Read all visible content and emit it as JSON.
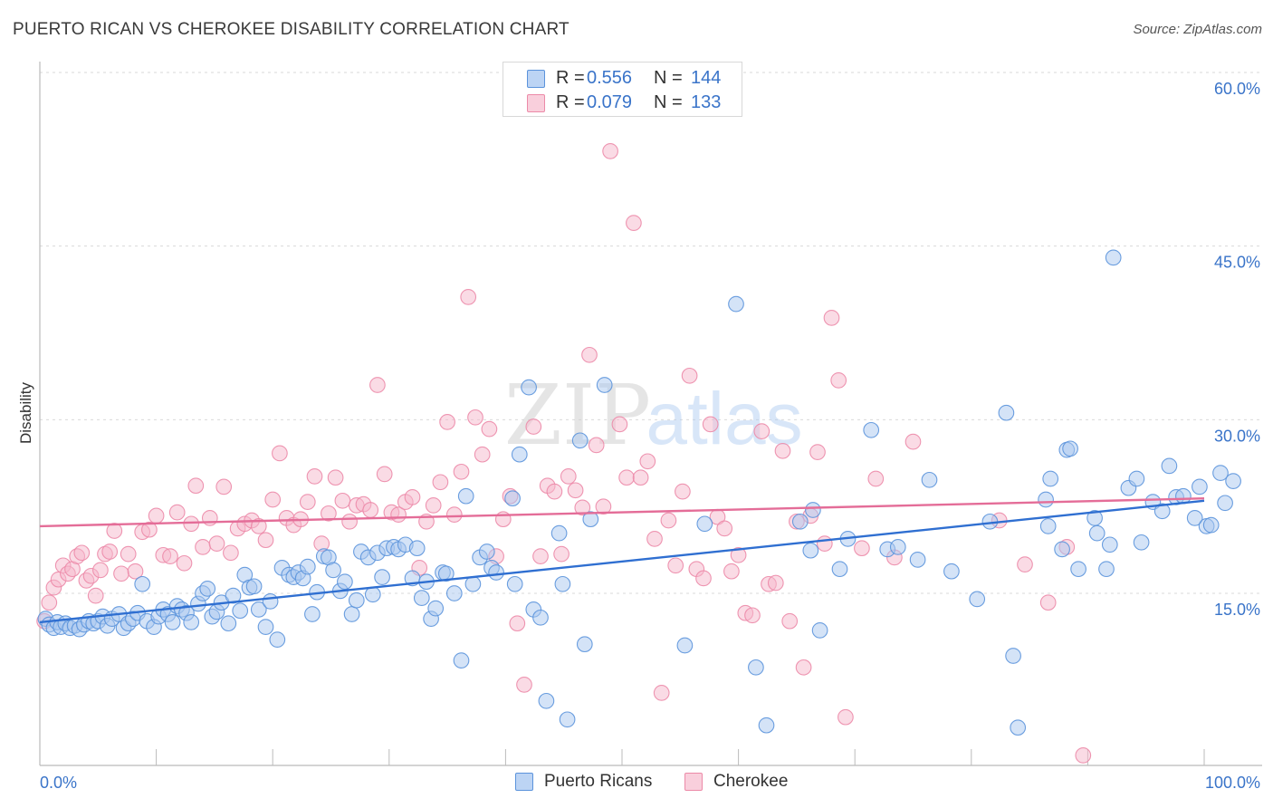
{
  "header": {
    "title": "PUERTO RICAN VS CHEROKEE DISABILITY CORRELATION CHART",
    "source": "Source: ZipAtlas.com"
  },
  "watermark": {
    "left": "ZIP",
    "right": "atlas"
  },
  "legend": {
    "rows": [
      {
        "r_label": "R =",
        "r_value": "0.556",
        "n_label": "N =",
        "n_value": "144"
      },
      {
        "r_label": "R =",
        "r_value": "0.079",
        "n_label": "N =",
        "n_value": "133"
      }
    ]
  },
  "bottom_legend": {
    "series1": "Puerto Ricans",
    "series2": "Cherokee"
  },
  "colors": {
    "blue_fill": "#a9c8f0",
    "blue_stroke": "#5b93db",
    "blue_line": "#2f6fd1",
    "pink_fill": "#f6b8cb",
    "pink_stroke": "#ec8aa8",
    "pink_line": "#e46d98",
    "grid": "#d9d9d9",
    "tick_text": "#3a74c9"
  },
  "chart_data": {
    "type": "scatter",
    "title": "PUERTO RICAN VS CHEROKEE DISABILITY CORRELATION CHART",
    "xlabel": "",
    "ylabel": "Disability",
    "xlim": [
      0,
      100
    ],
    "ylim": [
      0,
      62
    ],
    "y_ticks": [
      15,
      30,
      45,
      60
    ],
    "y_tick_labels": [
      "15.0%",
      "30.0%",
      "45.0%",
      "60.0%"
    ],
    "x_tick_labels": [
      "0.0%",
      "100.0%"
    ],
    "grid": "horizontal dashed",
    "legend_position": "top-center",
    "series": [
      {
        "name": "Puerto Ricans",
        "R": 0.556,
        "N": 144,
        "trend": [
          [
            0,
            12.5
          ],
          [
            100,
            23.0
          ]
        ],
        "points": [
          [
            0.5,
            12.8
          ],
          [
            0.8,
            12.3
          ],
          [
            1.2,
            12.0
          ],
          [
            1.5,
            12.5
          ],
          [
            1.8,
            12.1
          ],
          [
            2.2,
            12.4
          ],
          [
            2.6,
            12.0
          ],
          [
            3.0,
            12.2
          ],
          [
            3.4,
            11.9
          ],
          [
            3.8,
            12.3
          ],
          [
            4.2,
            12.6
          ],
          [
            4.6,
            12.4
          ],
          [
            5.0,
            12.6
          ],
          [
            5.4,
            13.0
          ],
          [
            5.8,
            12.2
          ],
          [
            6.2,
            12.8
          ],
          [
            6.8,
            13.2
          ],
          [
            7.2,
            12.0
          ],
          [
            7.6,
            12.4
          ],
          [
            8.0,
            12.8
          ],
          [
            8.4,
            13.3
          ],
          [
            8.8,
            15.8
          ],
          [
            9.2,
            12.6
          ],
          [
            9.8,
            12.1
          ],
          [
            10.2,
            13.0
          ],
          [
            10.6,
            13.6
          ],
          [
            11.0,
            13.2
          ],
          [
            11.4,
            12.5
          ],
          [
            11.8,
            13.9
          ],
          [
            12.2,
            13.6
          ],
          [
            12.6,
            13.3
          ],
          [
            13.0,
            12.5
          ],
          [
            13.6,
            14.1
          ],
          [
            14.0,
            15.0
          ],
          [
            14.4,
            15.4
          ],
          [
            14.8,
            13.0
          ],
          [
            15.2,
            13.4
          ],
          [
            15.6,
            14.2
          ],
          [
            16.2,
            12.4
          ],
          [
            16.6,
            14.8
          ],
          [
            17.2,
            13.5
          ],
          [
            17.6,
            16.6
          ],
          [
            18.0,
            15.5
          ],
          [
            18.4,
            15.6
          ],
          [
            18.8,
            13.6
          ],
          [
            19.4,
            12.1
          ],
          [
            19.8,
            14.3
          ],
          [
            20.4,
            11.0
          ],
          [
            20.8,
            17.2
          ],
          [
            21.4,
            16.6
          ],
          [
            21.8,
            16.4
          ],
          [
            22.2,
            16.8
          ],
          [
            22.6,
            16.3
          ],
          [
            23.0,
            17.3
          ],
          [
            23.4,
            13.2
          ],
          [
            23.8,
            15.1
          ],
          [
            24.4,
            18.2
          ],
          [
            24.8,
            18.1
          ],
          [
            25.2,
            17.0
          ],
          [
            25.8,
            15.2
          ],
          [
            26.2,
            16.0
          ],
          [
            26.8,
            13.2
          ],
          [
            27.2,
            14.4
          ],
          [
            27.6,
            18.6
          ],
          [
            28.2,
            18.1
          ],
          [
            28.6,
            14.9
          ],
          [
            29.0,
            18.5
          ],
          [
            29.4,
            16.4
          ],
          [
            29.8,
            18.9
          ],
          [
            30.4,
            19.0
          ],
          [
            30.8,
            18.8
          ],
          [
            31.4,
            19.2
          ],
          [
            32.0,
            16.3
          ],
          [
            32.4,
            18.9
          ],
          [
            32.8,
            14.6
          ],
          [
            33.2,
            16.0
          ],
          [
            33.6,
            12.8
          ],
          [
            34.0,
            13.7
          ],
          [
            34.6,
            16.8
          ],
          [
            34.9,
            16.7
          ],
          [
            35.6,
            15.0
          ],
          [
            36.2,
            9.2
          ],
          [
            36.6,
            23.4
          ],
          [
            37.2,
            15.8
          ],
          [
            37.8,
            18.1
          ],
          [
            38.4,
            18.6
          ],
          [
            38.8,
            17.2
          ],
          [
            39.2,
            16.8
          ],
          [
            40.6,
            23.2
          ],
          [
            40.8,
            15.8
          ],
          [
            41.2,
            27.0
          ],
          [
            42.0,
            32.8
          ],
          [
            42.4,
            13.6
          ],
          [
            43.0,
            12.9
          ],
          [
            43.5,
            5.7
          ],
          [
            44.6,
            20.2
          ],
          [
            44.9,
            15.8
          ],
          [
            45.3,
            4.1
          ],
          [
            46.4,
            28.2
          ],
          [
            46.8,
            10.6
          ],
          [
            47.3,
            21.4
          ],
          [
            48.5,
            33.0
          ],
          [
            55.4,
            10.5
          ],
          [
            57.1,
            21.0
          ],
          [
            59.8,
            40.0
          ],
          [
            61.5,
            8.6
          ],
          [
            62.4,
            3.6
          ],
          [
            65.3,
            21.2
          ],
          [
            66.2,
            18.7
          ],
          [
            66.4,
            22.2
          ],
          [
            67.0,
            11.8
          ],
          [
            68.7,
            17.1
          ],
          [
            69.4,
            19.7
          ],
          [
            71.4,
            29.1
          ],
          [
            72.8,
            18.8
          ],
          [
            73.7,
            19.0
          ],
          [
            75.4,
            17.9
          ],
          [
            76.4,
            24.8
          ],
          [
            78.3,
            16.9
          ],
          [
            80.5,
            14.5
          ],
          [
            81.6,
            21.2
          ],
          [
            83.0,
            30.6
          ],
          [
            83.6,
            9.6
          ],
          [
            84.0,
            3.4
          ],
          [
            86.4,
            23.1
          ],
          [
            86.6,
            20.8
          ],
          [
            86.8,
            24.9
          ],
          [
            87.8,
            18.8
          ],
          [
            88.2,
            27.4
          ],
          [
            88.5,
            27.5
          ],
          [
            89.2,
            17.1
          ],
          [
            90.6,
            21.5
          ],
          [
            90.8,
            20.2
          ],
          [
            91.6,
            17.1
          ],
          [
            91.9,
            19.2
          ],
          [
            92.2,
            44.0
          ],
          [
            93.5,
            24.1
          ],
          [
            94.2,
            24.9
          ],
          [
            94.6,
            19.4
          ],
          [
            95.6,
            22.9
          ],
          [
            96.4,
            22.1
          ],
          [
            97.0,
            26.0
          ],
          [
            97.6,
            23.3
          ],
          [
            98.2,
            23.4
          ],
          [
            99.2,
            21.5
          ],
          [
            99.6,
            24.2
          ],
          [
            100.2,
            20.8
          ],
          [
            100.6,
            20.9
          ],
          [
            101.4,
            25.4
          ],
          [
            101.8,
            22.8
          ],
          [
            102.5,
            24.7
          ]
        ]
      },
      {
        "name": "Cherokee",
        "R": 0.079,
        "N": 133,
        "trend": [
          [
            0,
            20.8
          ],
          [
            100,
            23.2
          ]
        ],
        "points": [
          [
            0.4,
            12.6
          ],
          [
            0.8,
            14.2
          ],
          [
            1.2,
            15.5
          ],
          [
            1.6,
            16.2
          ],
          [
            2.0,
            17.4
          ],
          [
            2.4,
            16.7
          ],
          [
            2.8,
            17.1
          ],
          [
            3.2,
            18.2
          ],
          [
            3.6,
            18.5
          ],
          [
            4.0,
            16.1
          ],
          [
            4.4,
            16.5
          ],
          [
            4.8,
            14.8
          ],
          [
            5.2,
            17.0
          ],
          [
            5.6,
            18.4
          ],
          [
            6.0,
            18.6
          ],
          [
            6.4,
            20.4
          ],
          [
            7.0,
            16.7
          ],
          [
            7.6,
            18.4
          ],
          [
            8.2,
            16.9
          ],
          [
            8.8,
            20.3
          ],
          [
            9.4,
            20.5
          ],
          [
            10.0,
            21.7
          ],
          [
            10.6,
            18.3
          ],
          [
            11.2,
            18.2
          ],
          [
            11.8,
            22.0
          ],
          [
            12.4,
            17.6
          ],
          [
            13.0,
            21.0
          ],
          [
            13.4,
            24.3
          ],
          [
            14.0,
            19.0
          ],
          [
            14.6,
            21.5
          ],
          [
            15.2,
            19.3
          ],
          [
            15.8,
            24.2
          ],
          [
            16.4,
            18.5
          ],
          [
            17.0,
            20.6
          ],
          [
            17.6,
            21.0
          ],
          [
            18.2,
            21.3
          ],
          [
            18.8,
            20.8
          ],
          [
            19.4,
            19.6
          ],
          [
            20.0,
            23.1
          ],
          [
            20.6,
            27.1
          ],
          [
            21.2,
            21.5
          ],
          [
            21.8,
            20.9
          ],
          [
            22.4,
            21.4
          ],
          [
            23.0,
            22.9
          ],
          [
            23.6,
            25.1
          ],
          [
            24.2,
            19.3
          ],
          [
            24.8,
            21.9
          ],
          [
            25.4,
            25.0
          ],
          [
            26.0,
            23.0
          ],
          [
            26.6,
            21.2
          ],
          [
            27.2,
            22.6
          ],
          [
            27.8,
            22.7
          ],
          [
            28.4,
            22.2
          ],
          [
            29.0,
            33.0
          ],
          [
            29.6,
            25.3
          ],
          [
            30.2,
            22.0
          ],
          [
            30.8,
            21.8
          ],
          [
            31.4,
            22.9
          ],
          [
            32.0,
            23.3
          ],
          [
            32.6,
            17.2
          ],
          [
            33.2,
            21.2
          ],
          [
            33.8,
            22.6
          ],
          [
            34.4,
            24.6
          ],
          [
            35.0,
            29.8
          ],
          [
            35.6,
            21.8
          ],
          [
            36.2,
            25.5
          ],
          [
            36.8,
            40.6
          ],
          [
            37.4,
            30.2
          ],
          [
            38.0,
            27.0
          ],
          [
            38.6,
            29.2
          ],
          [
            39.2,
            18.2
          ],
          [
            39.8,
            21.4
          ],
          [
            40.4,
            23.4
          ],
          [
            41.0,
            12.4
          ],
          [
            41.6,
            7.1
          ],
          [
            42.4,
            29.4
          ],
          [
            43.0,
            18.2
          ],
          [
            43.6,
            24.3
          ],
          [
            44.2,
            23.8
          ],
          [
            44.8,
            18.4
          ],
          [
            45.4,
            25.1
          ],
          [
            46.0,
            23.9
          ],
          [
            46.6,
            22.4
          ],
          [
            47.2,
            35.6
          ],
          [
            47.8,
            27.8
          ],
          [
            48.4,
            22.5
          ],
          [
            49.0,
            53.2
          ],
          [
            49.8,
            29.6
          ],
          [
            50.4,
            25.0
          ],
          [
            51.0,
            47.0
          ],
          [
            51.6,
            25.0
          ],
          [
            52.2,
            26.4
          ],
          [
            52.8,
            19.7
          ],
          [
            53.4,
            6.4
          ],
          [
            54.0,
            21.3
          ],
          [
            54.6,
            17.4
          ],
          [
            55.2,
            23.8
          ],
          [
            55.8,
            33.8
          ],
          [
            56.4,
            17.1
          ],
          [
            57.0,
            16.3
          ],
          [
            57.6,
            29.6
          ],
          [
            58.2,
            21.6
          ],
          [
            58.8,
            20.6
          ],
          [
            59.4,
            16.9
          ],
          [
            60.0,
            18.3
          ],
          [
            60.6,
            13.3
          ],
          [
            61.2,
            13.1
          ],
          [
            62.0,
            29.0
          ],
          [
            62.6,
            15.8
          ],
          [
            63.2,
            15.9
          ],
          [
            63.8,
            27.3
          ],
          [
            64.4,
            12.6
          ],
          [
            65.0,
            21.2
          ],
          [
            65.6,
            8.6
          ],
          [
            66.2,
            21.7
          ],
          [
            66.8,
            27.2
          ],
          [
            67.4,
            19.3
          ],
          [
            68.0,
            38.8
          ],
          [
            68.6,
            33.4
          ],
          [
            69.2,
            4.3
          ],
          [
            70.6,
            18.9
          ],
          [
            71.8,
            24.9
          ],
          [
            73.4,
            18.1
          ],
          [
            75.0,
            28.1
          ],
          [
            82.4,
            21.3
          ],
          [
            84.6,
            17.5
          ],
          [
            86.6,
            14.2
          ],
          [
            88.2,
            19.0
          ],
          [
            89.6,
            1.0
          ]
        ]
      }
    ]
  }
}
